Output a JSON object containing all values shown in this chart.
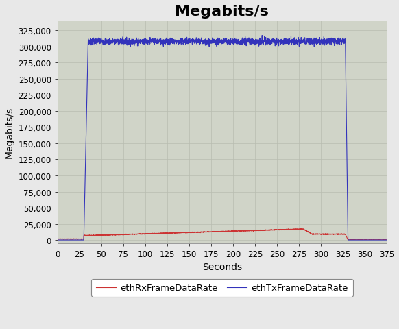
{
  "title": "Megabits/s",
  "xlabel": "Seconds",
  "ylabel": "Megabits/s",
  "xlim": [
    0,
    375
  ],
  "ylim": [
    -5000,
    340000
  ],
  "xticks": [
    0,
    25,
    50,
    75,
    100,
    125,
    150,
    175,
    200,
    225,
    250,
    275,
    300,
    325,
    350,
    375
  ],
  "yticks": [
    0,
    25000,
    50000,
    75000,
    100000,
    125000,
    150000,
    175000,
    200000,
    225000,
    250000,
    275000,
    300000,
    325000
  ],
  "outer_bg_color": "#e8e8e8",
  "plot_bg_color": "#d0d4c8",
  "grid_color": "#b8bcb0",
  "tx_color": "#3333bb",
  "rx_color": "#cc3333",
  "tx_label": "ethTxFrameDataRate",
  "rx_label": "ethRxFrameDataRate",
  "title_fontsize": 16,
  "axis_label_fontsize": 10,
  "tick_fontsize": 8.5,
  "legend_fontsize": 9.5
}
